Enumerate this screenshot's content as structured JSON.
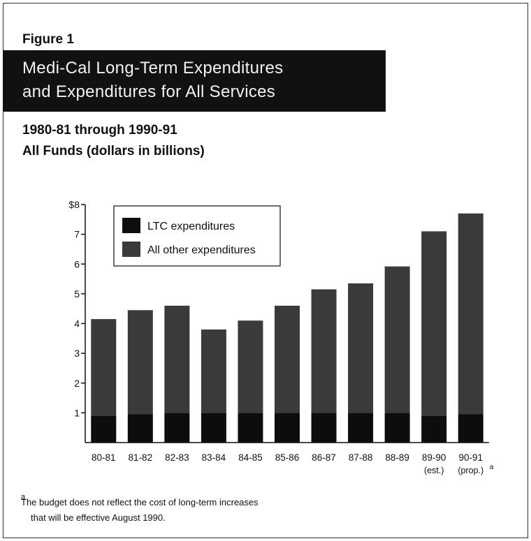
{
  "figure_label": "Figure 1",
  "title_lines": [
    "Medi-Cal Long-Term Expenditures",
    "and Expenditures for All Services"
  ],
  "subtitle_lines": [
    "1980-81 through 1990-91",
    "All Funds (dollars in billions)"
  ],
  "footnote": {
    "marker": "a",
    "lines": [
      "The budget does not reflect the cost of long-term increases",
      "that will be effective August 1990."
    ]
  },
  "chart_data": {
    "type": "bar",
    "stacked": true,
    "categories": [
      "80-81",
      "81-82",
      "82-83",
      "83-84",
      "84-85",
      "85-86",
      "86-87",
      "87-88",
      "88-89",
      "89-90",
      "90-91"
    ],
    "category_notes": [
      {
        "category": "89-90",
        "text": "(est.)"
      },
      {
        "category": "90-91",
        "text": "(prop.)",
        "superscript": "a"
      }
    ],
    "series": [
      {
        "name": "LTC expenditures",
        "values": [
          0.9,
          0.95,
          1.0,
          1.0,
          1.0,
          1.0,
          1.0,
          1.0,
          1.0,
          0.9,
          0.95
        ]
      },
      {
        "name": "All other expenditures",
        "values": [
          3.25,
          3.5,
          3.6,
          2.8,
          3.1,
          3.6,
          4.15,
          4.35,
          4.92,
          6.2,
          6.75
        ]
      }
    ],
    "ylim": [
      0,
      8
    ],
    "yticks": [
      1,
      2,
      3,
      4,
      5,
      6,
      7,
      8
    ],
    "ytick_labels": [
      "1",
      "2",
      "3",
      "4",
      "5",
      "6",
      "7",
      "$8"
    ],
    "legend_position": "top-left",
    "colors": {
      "ltc": "#0d0d0d",
      "other": "#3a3a3a",
      "axis": "#111111"
    }
  }
}
